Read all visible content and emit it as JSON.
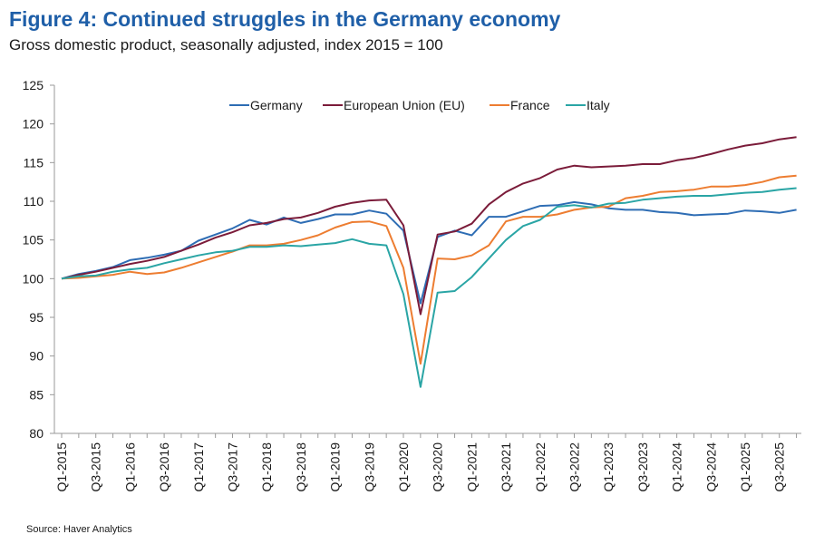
{
  "title": "Figure 4: Continued struggles in the Germany economy",
  "subtitle": "Gross domestic product, seasonally adjusted, index 2015 = 100",
  "source": "Source: Haver Analytics",
  "chart_data": {
    "type": "line",
    "ylim": [
      80,
      125
    ],
    "yticks": [
      80,
      85,
      90,
      95,
      100,
      105,
      110,
      115,
      120,
      125
    ],
    "xtick_labels": [
      "Q1-2015",
      "Q3-2015",
      "Q1-2016",
      "Q3-2016",
      "Q1-2017",
      "Q3-2017",
      "Q1-2018",
      "Q3-2018",
      "Q1-2019",
      "Q3-2019",
      "Q1-2020",
      "Q3-2020",
      "Q1-2021",
      "Q3-2021",
      "Q1-2022",
      "Q3-2022",
      "Q1-2023",
      "Q3-2023",
      "Q1-2024",
      "Q3-2024",
      "Q1-2025",
      "Q3-2025"
    ],
    "x": [
      "Q1-2015",
      "Q2-2015",
      "Q3-2015",
      "Q4-2015",
      "Q1-2016",
      "Q2-2016",
      "Q3-2016",
      "Q4-2016",
      "Q1-2017",
      "Q2-2017",
      "Q3-2017",
      "Q4-2017",
      "Q1-2018",
      "Q2-2018",
      "Q3-2018",
      "Q4-2018",
      "Q1-2019",
      "Q2-2019",
      "Q3-2019",
      "Q4-2019",
      "Q1-2020",
      "Q2-2020",
      "Q3-2020",
      "Q4-2020",
      "Q1-2021",
      "Q2-2021",
      "Q3-2021",
      "Q4-2021",
      "Q1-2022",
      "Q2-2022",
      "Q3-2022",
      "Q4-2022",
      "Q1-2023",
      "Q2-2023",
      "Q3-2023",
      "Q4-2023",
      "Q1-2024",
      "Q2-2024",
      "Q3-2024",
      "Q4-2024",
      "Q1-2025",
      "Q2-2025",
      "Q3-2025",
      "Q4-2025"
    ],
    "legend_position": "top",
    "series": [
      {
        "name": "Germany",
        "color": "#2e6db4",
        "values": [
          100.0,
          100.6,
          101.0,
          101.5,
          102.4,
          102.7,
          103.1,
          103.6,
          104.9,
          105.7,
          106.5,
          107.6,
          107.0,
          107.9,
          107.2,
          107.7,
          108.3,
          108.3,
          108.8,
          108.4,
          106.2,
          96.8,
          105.4,
          106.2,
          105.6,
          108.0,
          108.0,
          108.7,
          109.4,
          109.5,
          109.9,
          109.6,
          109.1,
          108.9,
          108.9,
          108.6,
          108.5,
          108.2,
          108.3,
          108.4,
          108.8,
          108.7,
          108.5,
          108.9
        ]
      },
      {
        "name": "European Union (EU)",
        "color": "#7b1c3a",
        "values": [
          100.0,
          100.5,
          100.9,
          101.4,
          101.9,
          102.3,
          102.8,
          103.6,
          104.4,
          105.3,
          106.0,
          106.9,
          107.2,
          107.7,
          107.9,
          108.5,
          109.3,
          109.8,
          110.1,
          110.2,
          106.9,
          95.4,
          105.7,
          106.1,
          107.1,
          109.6,
          111.2,
          112.3,
          113.0,
          114.1,
          114.6,
          114.4,
          114.5,
          114.6,
          114.8,
          114.8,
          115.3,
          115.6,
          116.1,
          116.7,
          117.2,
          117.5,
          118.0,
          118.3
        ]
      },
      {
        "name": "France",
        "color": "#ed7d31",
        "values": [
          100.0,
          100.1,
          100.3,
          100.5,
          100.9,
          100.6,
          100.8,
          101.4,
          102.1,
          102.8,
          103.5,
          104.3,
          104.3,
          104.5,
          105.0,
          105.6,
          106.6,
          107.3,
          107.4,
          106.8,
          101.4,
          89.0,
          102.6,
          102.5,
          103.0,
          104.3,
          107.4,
          108.0,
          108.0,
          108.3,
          108.9,
          109.2,
          109.3,
          110.4,
          110.7,
          111.2,
          111.3,
          111.5,
          111.9,
          111.9,
          112.1,
          112.5,
          113.1,
          113.3
        ]
      },
      {
        "name": "Italy",
        "color": "#2aa5a5",
        "values": [
          100.0,
          100.3,
          100.4,
          100.9,
          101.2,
          101.4,
          102.0,
          102.5,
          103.0,
          103.4,
          103.6,
          104.1,
          104.1,
          104.3,
          104.2,
          104.4,
          104.6,
          105.1,
          104.5,
          104.3,
          98.0,
          86.0,
          98.2,
          98.4,
          100.2,
          102.6,
          105.0,
          106.8,
          107.6,
          109.3,
          109.5,
          109.2,
          109.7,
          109.8,
          110.2,
          110.4,
          110.6,
          110.7,
          110.7,
          110.9,
          111.1,
          111.2,
          111.5,
          111.7
        ]
      }
    ]
  }
}
